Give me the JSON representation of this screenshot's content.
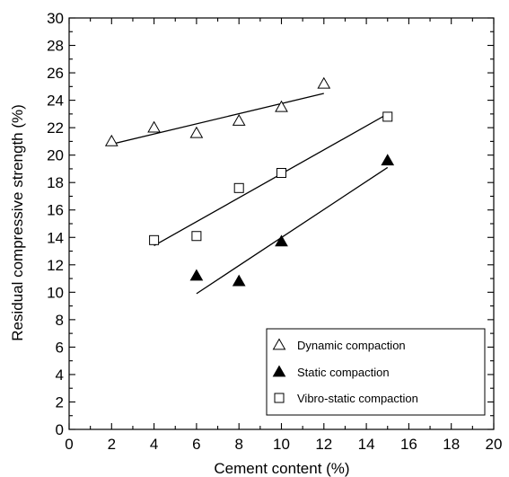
{
  "chart_data": {
    "type": "scatter",
    "title": "",
    "xlabel": "Cement content (%)",
    "ylabel": "Residual compressive strength (%)",
    "xlim": [
      0,
      20
    ],
    "ylim": [
      0,
      30
    ],
    "x_major_ticks": [
      0,
      2,
      4,
      6,
      8,
      10,
      12,
      14,
      16,
      18,
      20
    ],
    "y_major_ticks": [
      0,
      2,
      4,
      6,
      8,
      10,
      12,
      14,
      16,
      18,
      20,
      22,
      24,
      26,
      28,
      30
    ],
    "grid": false,
    "legend_position": "bottom-right",
    "series": [
      {
        "name": "Dynamic compaction",
        "marker": "open-triangle",
        "points": [
          {
            "x": 2,
            "y": 21.0
          },
          {
            "x": 4,
            "y": 22.0
          },
          {
            "x": 6,
            "y": 21.6
          },
          {
            "x": 8,
            "y": 22.5
          },
          {
            "x": 10,
            "y": 23.5
          },
          {
            "x": 12,
            "y": 25.2
          }
        ],
        "fit_line": {
          "x": [
            2,
            12
          ],
          "y": [
            20.8,
            24.5
          ]
        }
      },
      {
        "name": "Static compaction",
        "marker": "filled-triangle",
        "points": [
          {
            "x": 6,
            "y": 11.2
          },
          {
            "x": 8,
            "y": 10.8
          },
          {
            "x": 10,
            "y": 13.7
          },
          {
            "x": 15,
            "y": 19.6
          }
        ],
        "fit_line": {
          "x": [
            6,
            15
          ],
          "y": [
            9.9,
            19.1
          ]
        }
      },
      {
        "name": "Vibro-static compaction",
        "marker": "open-square",
        "points": [
          {
            "x": 4,
            "y": 13.8
          },
          {
            "x": 6,
            "y": 14.1
          },
          {
            "x": 8,
            "y": 17.6
          },
          {
            "x": 10,
            "y": 18.7
          },
          {
            "x": 15,
            "y": 22.8
          }
        ],
        "fit_line": {
          "x": [
            4,
            15
          ],
          "y": [
            13.4,
            23.0
          ]
        }
      }
    ]
  }
}
